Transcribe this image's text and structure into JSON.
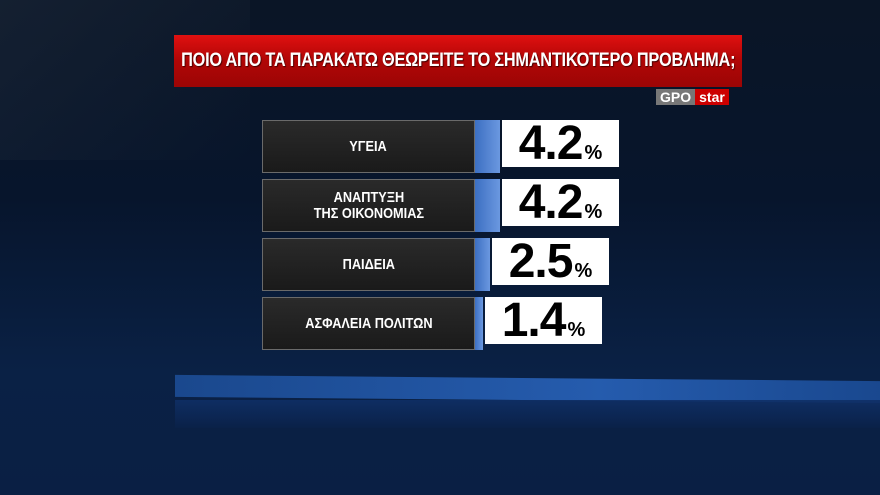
{
  "title": "ΠΟΙΟ ΑΠΟ ΤΑ ΠΑΡΑΚΑΤΩ ΘΕΩΡΕΙΤΕ ΤΟ ΣΗΜΑΝΤΙΚΟΤΕΡΟ ΠΡΟΒΛΗΜΑ;",
  "logo": {
    "left": "GPO",
    "right": "star"
  },
  "colors": {
    "title_bg": "#c00808",
    "bar": "#4a7fd0",
    "label_bg": "#222222",
    "value_bg": "#ffffff"
  },
  "chart_data": {
    "type": "bar",
    "title": "ΠΟΙΟ ΑΠΟ ΤΑ ΠΑΡΑΚΑΤΩ ΘΕΩΡΕΙΤΕ ΤΟ ΣΗΜΑΝΤΙΚΟΤΕΡΟ ΠΡΟΒΛΗΜΑ;",
    "orientation": "horizontal",
    "unit": "%",
    "categories": [
      "ΥΓΕΙΑ",
      "ΑΝΑΠΤΥΞΗ\nΤΗΣ ΟΙΚΟΝΟΜΙΑΣ",
      "ΠΑΙΔΕΙΑ",
      "ΑΣΦΑΛΕΙΑ ΠΟΛΙΤΩΝ"
    ],
    "values": [
      4.2,
      4.2,
      2.5,
      1.4
    ],
    "value_labels": [
      "4.2",
      "4.2",
      "2.5",
      "1.4"
    ]
  }
}
